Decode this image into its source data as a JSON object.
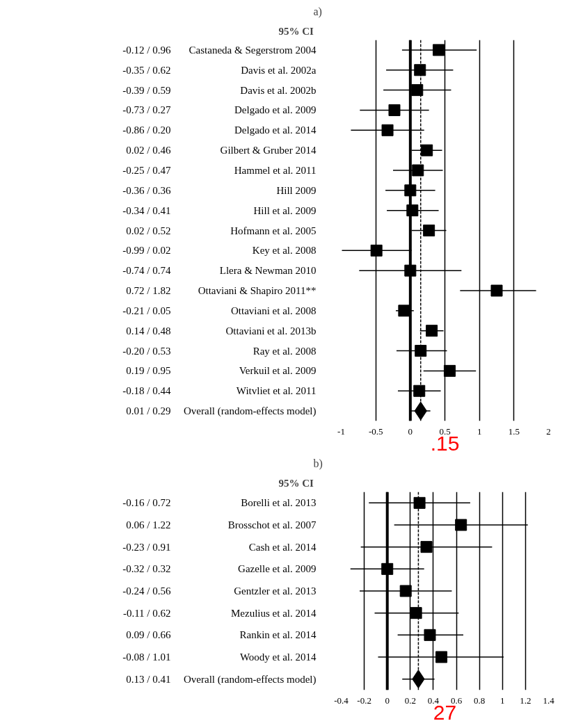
{
  "chart_data": [
    {
      "type": "scatter",
      "title": "a)",
      "subtitle": "95% CI",
      "orientation": "horizontal",
      "grid": "x",
      "categories": [
        "Castaneda & Segerstrom 2004",
        "Davis et al. 2002a",
        "Davis et al. 2002b",
        "Delgado et al. 2009",
        "Delgado et al. 2014",
        "Gilbert & Gruber 2014",
        "Hammel et al. 2011",
        "Hill 2009",
        "Hill et al. 2009",
        "Hofmann et al. 2005",
        "Key et al. 2008",
        "Llera & Newman 2010",
        "Ottaviani & Shapiro 2011**",
        "Ottaviani et al. 2008",
        "Ottaviani et al. 2013b",
        "Ray et al. 2008",
        "Verkuil et al. 2009",
        "Witvliet et al. 2011",
        "Overall (random-effects model)"
      ],
      "value_labels": [
        "-0.12 / 0.96",
        "-0.35 / 0.62",
        "-0.39 / 0.59",
        "-0.73 / 0.27",
        "-0.86 / 0.20",
        "0.02 / 0.46",
        "-0.25 / 0.47",
        "-0.36 / 0.36",
        "-0.34 / 0.41",
        "0.02 / 0.52",
        "-0.99 / 0.02",
        "-0.74 / 0.74",
        "0.72 / 1.82",
        "-0.21 / 0.05",
        "0.14 / 0.48",
        "-0.20 / 0.53",
        "0.19 / 0.95",
        "-0.18 / 0.44",
        "0.01 / 0.29"
      ],
      "series": [
        {
          "marker": "square",
          "color": "#000000",
          "values": [
            0.41,
            0.14,
            0.1,
            -0.23,
            -0.33,
            0.24,
            0.11,
            0.0,
            0.03,
            0.27,
            -0.49,
            0.0,
            1.25,
            -0.09,
            0.31,
            0.15,
            0.57,
            0.13,
            null
          ],
          "errors": [
            [
              -0.12,
              0.96
            ],
            [
              -0.35,
              0.62
            ],
            [
              -0.39,
              0.59
            ],
            [
              -0.73,
              0.27
            ],
            [
              -0.86,
              0.2
            ],
            [
              0.02,
              0.46
            ],
            [
              -0.25,
              0.47
            ],
            [
              -0.36,
              0.36
            ],
            [
              -0.34,
              0.41
            ],
            [
              0.02,
              0.52
            ],
            [
              -0.99,
              0.02
            ],
            [
              -0.74,
              0.74
            ],
            [
              0.72,
              1.82
            ],
            [
              -0.21,
              0.05
            ],
            [
              0.14,
              0.48
            ],
            [
              -0.2,
              0.53
            ],
            [
              0.19,
              0.95
            ],
            [
              -0.18,
              0.44
            ],
            null
          ]
        },
        {
          "marker": "diamond",
          "color": "#000000",
          "values": [
            null,
            null,
            null,
            null,
            null,
            null,
            null,
            null,
            null,
            null,
            null,
            null,
            null,
            null,
            null,
            null,
            null,
            null,
            0.15
          ],
          "errors": [
            null,
            null,
            null,
            null,
            null,
            null,
            null,
            null,
            null,
            null,
            null,
            null,
            null,
            null,
            null,
            null,
            null,
            null,
            [
              0.01,
              0.29
            ]
          ]
        }
      ],
      "xlim": [
        -1,
        2
      ],
      "xticks": [
        -1,
        -0.5,
        0,
        0.5,
        1,
        1.5,
        2
      ],
      "ref_lines": [
        {
          "axis": "x",
          "value": 0,
          "line_style": "solid"
        },
        {
          "axis": "x",
          "value": 0.15,
          "line_style": "dashed"
        }
      ],
      "annotations": [
        ".15"
      ]
    },
    {
      "type": "scatter",
      "title": "b)",
      "subtitle": "95% CI",
      "orientation": "horizontal",
      "grid": "x",
      "categories": [
        "Borelli et al. 2013",
        "Brosschot et al. 2007",
        "Cash et al. 2014",
        "Gazelle et al. 2009",
        "Gentzler et al. 2013",
        "Mezulius et al. 2014",
        "Rankin et al. 2014",
        "Woody et al. 2014",
        "Overall (random-effects model)"
      ],
      "value_labels": [
        "-0.16 / 0.72",
        "0.06 / 1.22",
        "-0.23 / 0.91",
        "-0.32 / 0.32",
        "-0.24 / 0.56",
        "-0.11 / 0.62",
        "0.09 / 0.66",
        "-0.08 / 1.01",
        "0.13 / 0.41"
      ],
      "series": [
        {
          "marker": "square",
          "color": "#000000",
          "values": [
            0.28,
            0.64,
            0.34,
            0.0,
            0.16,
            0.25,
            0.37,
            0.47,
            null
          ],
          "errors": [
            [
              -0.16,
              0.72
            ],
            [
              0.06,
              1.22
            ],
            [
              -0.23,
              0.91
            ],
            [
              -0.32,
              0.32
            ],
            [
              -0.24,
              0.56
            ],
            [
              -0.11,
              0.62
            ],
            [
              0.09,
              0.66
            ],
            [
              -0.08,
              1.01
            ],
            null
          ]
        },
        {
          "marker": "diamond",
          "color": "#000000",
          "values": [
            null,
            null,
            null,
            null,
            null,
            null,
            null,
            null,
            0.27
          ],
          "errors": [
            null,
            null,
            null,
            null,
            null,
            null,
            null,
            null,
            [
              0.13,
              0.41
            ]
          ]
        }
      ],
      "xlim": [
        -0.4,
        1.4
      ],
      "xticks": [
        -0.4,
        -0.2,
        0,
        0.2,
        0.4,
        0.6,
        0.8,
        1,
        1.2,
        1.4
      ],
      "ref_lines": [
        {
          "axis": "x",
          "value": 0,
          "line_style": "solid"
        },
        {
          "axis": "x",
          "value": 0.27,
          "line_style": "dashed"
        }
      ],
      "annotations": [
        "27"
      ]
    }
  ]
}
